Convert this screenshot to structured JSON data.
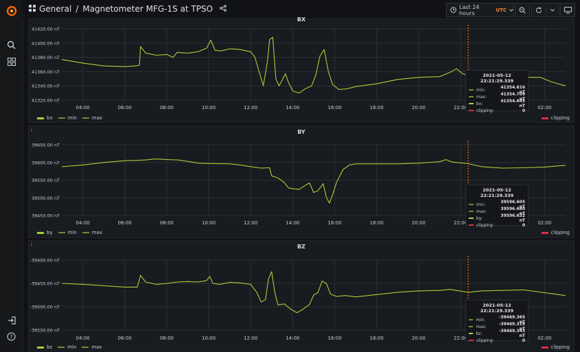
{
  "breadcrumb": {
    "folder": "General",
    "separator": "/",
    "dashboard": "Magnetometer MFG-1S at TPSO"
  },
  "time_picker": {
    "label": "Last 24 hours",
    "timezone": "UTC"
  },
  "colors": {
    "series": "#a7d33a",
    "minmax": "#6f8e31",
    "clipping": "#e02f44",
    "marker": "#ff7d22"
  },
  "chart_data": [
    {
      "type": "line",
      "title": "BX",
      "unit": "nT",
      "ylim": [
        41320,
        41420
      ],
      "yticks": [
        "41420.00 nT",
        "41400.00 nT",
        "41380.00 nT",
        "41360.00 nT",
        "41340.00 nT",
        "41320.00 nT"
      ],
      "xticks": [
        "04:00",
        "06:00",
        "08:00",
        "10:00",
        "12:00",
        "14:00",
        "16:00",
        "18:00",
        "20:00",
        "22:00",
        "02:00"
      ],
      "xtick_hours": [
        4,
        6,
        8,
        10,
        12,
        14,
        16,
        18,
        20,
        22,
        26
      ],
      "xlim_hours": [
        3.0,
        27.0
      ],
      "cursor_hour": 22.36,
      "legend": [
        "bx",
        "min",
        "max"
      ],
      "legend_right": "clipping",
      "series": [
        {
          "name": "bx",
          "points": [
            [
              3.0,
              41377
            ],
            [
              4.0,
              41372
            ],
            [
              5.0,
              41368
            ],
            [
              6.0,
              41367
            ],
            [
              6.5,
              41368
            ],
            [
              6.7,
              41369
            ],
            [
              6.75,
              41395
            ],
            [
              7.0,
              41386
            ],
            [
              7.5,
              41383
            ],
            [
              8.0,
              41384
            ],
            [
              8.3,
              41380
            ],
            [
              8.5,
              41387
            ],
            [
              9.0,
              41386
            ],
            [
              9.5,
              41388
            ],
            [
              9.9,
              41393
            ],
            [
              10.1,
              41404
            ],
            [
              10.3,
              41390
            ],
            [
              10.6,
              41389
            ],
            [
              11.0,
              41392
            ],
            [
              11.5,
              41391
            ],
            [
              11.8,
              41389
            ],
            [
              12.0,
              41388
            ],
            [
              12.2,
              41380
            ],
            [
              12.4,
              41360
            ],
            [
              12.6,
              41340
            ],
            [
              12.8,
              41375
            ],
            [
              12.9,
              41405
            ],
            [
              13.05,
              41408
            ],
            [
              13.2,
              41350
            ],
            [
              13.35,
              41340
            ],
            [
              13.5,
              41348
            ],
            [
              13.65,
              41357
            ],
            [
              13.8,
              41345
            ],
            [
              14.0,
              41333
            ],
            [
              14.3,
              41330
            ],
            [
              14.6,
              41336
            ],
            [
              14.9,
              41340
            ],
            [
              15.1,
              41355
            ],
            [
              15.3,
              41382
            ],
            [
              15.5,
              41391
            ],
            [
              15.7,
              41360
            ],
            [
              15.9,
              41342
            ],
            [
              16.2,
              41335
            ],
            [
              16.6,
              41336
            ],
            [
              17.0,
              41339
            ],
            [
              18.0,
              41343
            ],
            [
              19.0,
              41349
            ],
            [
              20.0,
              41352
            ],
            [
              21.0,
              41353
            ],
            [
              21.5,
              41359
            ],
            [
              21.8,
              41364
            ],
            [
              22.1,
              41357
            ],
            [
              22.36,
              41354.6
            ],
            [
              23.0,
              41352
            ],
            [
              24.0,
              41355
            ],
            [
              25.0,
              41352
            ],
            [
              25.8,
              41352
            ],
            [
              26.3,
              41346
            ],
            [
              27.0,
              41340
            ]
          ]
        }
      ],
      "tooltip": {
        "time": "2021-05-12 22:21:29.339",
        "rows": [
          {
            "label": "min:",
            "value": "41354.616 nT",
            "color": "#6f8e31"
          },
          {
            "label": "max:",
            "value": "41354.709 nT",
            "color": "#6f8e31"
          },
          {
            "label": "bx:",
            "value": "41354.645 nT",
            "color": "#a7d33a"
          },
          {
            "label": "clipping:",
            "value": "0",
            "color": "#e02f44"
          }
        ]
      }
    },
    {
      "type": "line",
      "title": "BY",
      "unit": "nT",
      "ylim": [
        39450,
        39650
      ],
      "yticks": [
        "39650.00 nT",
        "39600.00 nT",
        "39550.00 nT",
        "39500.00 nT",
        "39450.00 nT"
      ],
      "xticks": [
        "04:00",
        "06:00",
        "08:00",
        "10:00",
        "12:00",
        "14:00",
        "16:00",
        "18:00",
        "20:00",
        "22:00",
        "02:00"
      ],
      "xtick_hours": [
        4,
        6,
        8,
        10,
        12,
        14,
        16,
        18,
        20,
        22,
        26
      ],
      "xlim_hours": [
        3.0,
        27.0
      ],
      "cursor_hour": 22.36,
      "legend": [
        "by",
        "min",
        "max"
      ],
      "legend_right": "clipping",
      "series": [
        {
          "name": "by",
          "points": [
            [
              3.0,
              39588
            ],
            [
              4.0,
              39593
            ],
            [
              5.0,
              39600
            ],
            [
              6.0,
              39605
            ],
            [
              6.6,
              39606
            ],
            [
              7.0,
              39607
            ],
            [
              7.5,
              39610
            ],
            [
              8.0,
              39608
            ],
            [
              8.5,
              39607
            ],
            [
              9.0,
              39603
            ],
            [
              9.5,
              39598
            ],
            [
              10.0,
              39597
            ],
            [
              11.0,
              39596
            ],
            [
              11.5,
              39593
            ],
            [
              12.0,
              39588
            ],
            [
              12.5,
              39584
            ],
            [
              12.9,
              39585
            ],
            [
              13.0,
              39562
            ],
            [
              13.3,
              39556
            ],
            [
              13.6,
              39543
            ],
            [
              13.8,
              39528
            ],
            [
              14.0,
              39526
            ],
            [
              14.3,
              39524
            ],
            [
              14.6,
              39535
            ],
            [
              14.8,
              39542
            ],
            [
              15.0,
              39515
            ],
            [
              15.2,
              39520
            ],
            [
              15.45,
              39540
            ],
            [
              15.6,
              39502
            ],
            [
              15.75,
              39485
            ],
            [
              15.9,
              39508
            ],
            [
              16.1,
              39545
            ],
            [
              16.4,
              39580
            ],
            [
              16.7,
              39593
            ],
            [
              17.0,
              39596
            ],
            [
              18.0,
              39596
            ],
            [
              19.0,
              39596
            ],
            [
              20.0,
              39598
            ],
            [
              21.0,
              39602
            ],
            [
              21.3,
              39608
            ],
            [
              21.6,
              39601
            ],
            [
              22.36,
              39596.6
            ],
            [
              23.0,
              39588
            ],
            [
              24.0,
              39584
            ],
            [
              25.0,
              39585
            ],
            [
              26.0,
              39587
            ],
            [
              27.0,
              39592
            ]
          ]
        }
      ],
      "tooltip": {
        "time": "2021-05-12 22:21:29.339",
        "rows": [
          {
            "label": "min:",
            "value": "39596.605 nT",
            "color": "#6f8e31"
          },
          {
            "label": "max:",
            "value": "39596.660 nT",
            "color": "#6f8e31"
          },
          {
            "label": "by:",
            "value": "39596.632 nT",
            "color": "#a7d33a"
          },
          {
            "label": "clipping:",
            "value": "0",
            "color": "#e02f44"
          }
        ]
      }
    },
    {
      "type": "line",
      "title": "BZ",
      "unit": "nT",
      "ylim": [
        -39550,
        -39400
      ],
      "yticks": [
        "-39400.00 nT",
        "-39450.00 nT",
        "-39500.00 nT",
        "-39550.00 nT"
      ],
      "xticks": [
        "04:00",
        "06:00",
        "08:00",
        "10:00",
        "12:00",
        "14:00",
        "16:00",
        "18:00",
        "20:00",
        "22:00",
        "02:00"
      ],
      "xtick_hours": [
        4,
        6,
        8,
        10,
        12,
        14,
        16,
        18,
        20,
        22,
        26
      ],
      "xlim_hours": [
        3.0,
        27.0
      ],
      "cursor_hour": 22.36,
      "legend": [
        "bz",
        "min",
        "max"
      ],
      "legend_right": "clipping",
      "series": [
        {
          "name": "bz",
          "points": [
            [
              3.0,
              -39450
            ],
            [
              4.0,
              -39452
            ],
            [
              5.0,
              -39455
            ],
            [
              6.0,
              -39458
            ],
            [
              6.6,
              -39458
            ],
            [
              6.75,
              -39433
            ],
            [
              7.0,
              -39447
            ],
            [
              7.5,
              -39452
            ],
            [
              8.0,
              -39450
            ],
            [
              8.5,
              -39447
            ],
            [
              9.0,
              -39446
            ],
            [
              9.5,
              -39447
            ],
            [
              9.9,
              -39444
            ],
            [
              10.05,
              -39435
            ],
            [
              10.2,
              -39450
            ],
            [
              10.5,
              -39452
            ],
            [
              11.0,
              -39448
            ],
            [
              11.5,
              -39449
            ],
            [
              12.0,
              -39452
            ],
            [
              12.3,
              -39470
            ],
            [
              12.5,
              -39490
            ],
            [
              12.7,
              -39485
            ],
            [
              12.85,
              -39440
            ],
            [
              13.0,
              -39425
            ],
            [
              13.15,
              -39470
            ],
            [
              13.3,
              -39496
            ],
            [
              13.6,
              -39494
            ],
            [
              13.9,
              -39505
            ],
            [
              14.2,
              -39513
            ],
            [
              14.5,
              -39505
            ],
            [
              14.8,
              -39495
            ],
            [
              15.0,
              -39475
            ],
            [
              15.2,
              -39470
            ],
            [
              15.4,
              -39445
            ],
            [
              15.6,
              -39450
            ],
            [
              15.8,
              -39473
            ],
            [
              16.1,
              -39478
            ],
            [
              16.5,
              -39476
            ],
            [
              17.0,
              -39479
            ],
            [
              18.0,
              -39474
            ],
            [
              19.0,
              -39469
            ],
            [
              20.0,
              -39466
            ],
            [
              21.0,
              -39465
            ],
            [
              21.5,
              -39463
            ],
            [
              22.36,
              -39469.3
            ],
            [
              23.0,
              -39466
            ],
            [
              24.0,
              -39465
            ],
            [
              25.0,
              -39464
            ],
            [
              26.0,
              -39470
            ],
            [
              27.0,
              -39476
            ]
          ]
        }
      ],
      "tooltip": {
        "time": "2021-05-12 22:21:29.339",
        "rows": [
          {
            "label": "min:",
            "value": "-39469.365 nT",
            "color": "#6f8e31"
          },
          {
            "label": "max:",
            "value": "-39469.319 nT",
            "color": "#6f8e31"
          },
          {
            "label": "bz:",
            "value": "-39469.343 nT",
            "color": "#a7d33a"
          },
          {
            "label": "clipping:",
            "value": "0",
            "color": "#e02f44"
          }
        ]
      }
    }
  ]
}
